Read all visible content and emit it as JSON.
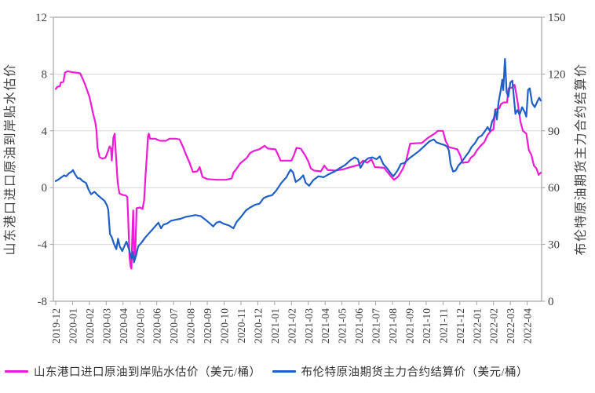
{
  "chart_data": {
    "type": "line",
    "title": "",
    "grid": true,
    "legend_position": "bottom",
    "left_axis": {
      "label": "山东港口进口原油到岸贴水估价",
      "ticks": [
        12,
        8,
        4,
        0,
        -4,
        -8
      ],
      "min": -8,
      "max": 12
    },
    "right_axis": {
      "label": "布伦特原油期货主力合约结算价",
      "ticks": [
        150,
        120,
        90,
        60,
        30,
        0
      ],
      "min": 0,
      "max": 150
    },
    "x_axis": {
      "unit": "month",
      "tick_labels": [
        "2019-12",
        "2020-01",
        "2020-02",
        "2020-03",
        "2020-04",
        "2020-05",
        "2020-06",
        "2020-07",
        "2020-08",
        "2020-09",
        "2020-10",
        "2020-11",
        "2020-12",
        "2021-01",
        "2021-02",
        "2021-03",
        "2021-04",
        "2021-05",
        "2021-06",
        "2021-07",
        "2021-08",
        "2021-09",
        "2021-10",
        "2021-11",
        "2021-12",
        "2022-01",
        "2022-02",
        "2022-03",
        "2022-04"
      ]
    },
    "series": [
      {
        "name": "山东港口进口原油到岸贴水估价（美元/桶）",
        "axis": "left",
        "color": "#ED1BD5",
        "points": [
          [
            0.0,
            6.95
          ],
          [
            0.1,
            7.1
          ],
          [
            0.25,
            7.15
          ],
          [
            0.3,
            7.4
          ],
          [
            0.45,
            7.45
          ],
          [
            0.55,
            8.1
          ],
          [
            0.7,
            8.2
          ],
          [
            0.9,
            8.15
          ],
          [
            1.2,
            8.1
          ],
          [
            1.45,
            8.05
          ],
          [
            1.55,
            7.8
          ],
          [
            1.7,
            7.4
          ],
          [
            1.85,
            6.9
          ],
          [
            2.0,
            6.4
          ],
          [
            2.1,
            5.9
          ],
          [
            2.2,
            5.3
          ],
          [
            2.35,
            4.6
          ],
          [
            2.42,
            4.05
          ],
          [
            2.48,
            2.8
          ],
          [
            2.6,
            2.15
          ],
          [
            2.75,
            2.05
          ],
          [
            2.95,
            2.1
          ],
          [
            3.1,
            2.55
          ],
          [
            3.2,
            2.9
          ],
          [
            3.28,
            2.75
          ],
          [
            3.33,
            1.9
          ],
          [
            3.42,
            3.5
          ],
          [
            3.5,
            3.8
          ],
          [
            3.58,
            2.2
          ],
          [
            3.68,
            0.4
          ],
          [
            3.78,
            -0.4
          ],
          [
            3.95,
            -0.5
          ],
          [
            4.15,
            -0.55
          ],
          [
            4.25,
            -0.65
          ],
          [
            4.3,
            -2.0
          ],
          [
            4.38,
            -4.9
          ],
          [
            4.45,
            -5.6
          ],
          [
            4.5,
            -5.7
          ],
          [
            4.55,
            -3.3
          ],
          [
            4.6,
            -1.6
          ],
          [
            4.66,
            -5.2
          ],
          [
            4.72,
            -4.9
          ],
          [
            4.8,
            -1.45
          ],
          [
            5.0,
            -1.4
          ],
          [
            5.15,
            -1.5
          ],
          [
            5.25,
            -0.9
          ],
          [
            5.32,
            0.6
          ],
          [
            5.4,
            2.0
          ],
          [
            5.48,
            3.6
          ],
          [
            5.53,
            3.8
          ],
          [
            5.6,
            3.45
          ],
          [
            5.9,
            3.45
          ],
          [
            6.2,
            3.3
          ],
          [
            6.55,
            3.3
          ],
          [
            6.75,
            3.45
          ],
          [
            7.1,
            3.45
          ],
          [
            7.35,
            3.4
          ],
          [
            7.55,
            2.9
          ],
          [
            7.75,
            2.3
          ],
          [
            7.95,
            1.75
          ],
          [
            8.15,
            1.1
          ],
          [
            8.4,
            1.15
          ],
          [
            8.55,
            1.45
          ],
          [
            8.72,
            0.75
          ],
          [
            9.0,
            0.6
          ],
          [
            9.6,
            0.55
          ],
          [
            10.1,
            0.55
          ],
          [
            10.45,
            0.65
          ],
          [
            10.55,
            1.05
          ],
          [
            10.75,
            1.35
          ],
          [
            10.95,
            1.7
          ],
          [
            11.15,
            1.9
          ],
          [
            11.35,
            2.1
          ],
          [
            11.55,
            2.45
          ],
          [
            11.8,
            2.6
          ],
          [
            12.1,
            2.7
          ],
          [
            12.4,
            2.95
          ],
          [
            12.6,
            2.75
          ],
          [
            13.05,
            2.7
          ],
          [
            13.25,
            2.2
          ],
          [
            13.35,
            1.9
          ],
          [
            14.0,
            1.9
          ],
          [
            14.15,
            2.3
          ],
          [
            14.3,
            2.8
          ],
          [
            14.55,
            2.75
          ],
          [
            14.8,
            2.3
          ],
          [
            15.0,
            1.85
          ],
          [
            15.15,
            1.35
          ],
          [
            15.35,
            1.2
          ],
          [
            15.75,
            1.15
          ],
          [
            15.95,
            1.55
          ],
          [
            16.15,
            1.25
          ],
          [
            16.6,
            1.2
          ],
          [
            17.1,
            1.3
          ],
          [
            17.5,
            1.45
          ],
          [
            18.0,
            1.6
          ],
          [
            18.25,
            1.9
          ],
          [
            18.5,
            1.75
          ],
          [
            18.75,
            2.0
          ],
          [
            18.95,
            1.45
          ],
          [
            19.5,
            1.4
          ],
          [
            19.9,
            0.8
          ],
          [
            20.1,
            0.55
          ],
          [
            20.35,
            0.8
          ],
          [
            20.6,
            1.3
          ],
          [
            20.8,
            1.85
          ],
          [
            20.95,
            2.6
          ],
          [
            21.05,
            3.1
          ],
          [
            21.75,
            3.15
          ],
          [
            22.1,
            3.5
          ],
          [
            22.5,
            3.8
          ],
          [
            22.7,
            4.0
          ],
          [
            23.0,
            4.0
          ],
          [
            23.15,
            3.3
          ],
          [
            23.35,
            2.85
          ],
          [
            23.85,
            2.7
          ],
          [
            24.05,
            2.2
          ],
          [
            24.15,
            1.75
          ],
          [
            24.5,
            1.8
          ],
          [
            24.65,
            2.1
          ],
          [
            24.85,
            2.3
          ],
          [
            25.0,
            2.6
          ],
          [
            25.2,
            2.9
          ],
          [
            25.45,
            3.2
          ],
          [
            25.65,
            3.7
          ],
          [
            25.85,
            4.0
          ],
          [
            26.0,
            4.1
          ],
          [
            26.1,
            5.5
          ],
          [
            26.35,
            5.6
          ],
          [
            26.45,
            5.9
          ],
          [
            26.6,
            6.0
          ],
          [
            26.8,
            6.0
          ],
          [
            26.9,
            7.0
          ],
          [
            27.1,
            7.05
          ],
          [
            27.25,
            7.25
          ],
          [
            27.35,
            6.6
          ],
          [
            27.45,
            5.9
          ],
          [
            27.6,
            4.65
          ],
          [
            27.75,
            4.0
          ],
          [
            27.95,
            3.8
          ],
          [
            28.1,
            2.65
          ],
          [
            28.25,
            2.3
          ],
          [
            28.4,
            1.55
          ],
          [
            28.55,
            1.35
          ],
          [
            28.68,
            0.9
          ],
          [
            28.8,
            1.05
          ]
        ]
      },
      {
        "name": "布伦特原油期货主力合约结算价（美元/桶）",
        "axis": "right",
        "color": "#1F5FC6",
        "points": [
          [
            0.0,
            63.5
          ],
          [
            0.2,
            64.5
          ],
          [
            0.35,
            65.5
          ],
          [
            0.5,
            66.5
          ],
          [
            0.62,
            66.0
          ],
          [
            0.78,
            67.5
          ],
          [
            0.95,
            68.5
          ],
          [
            1.02,
            69.3
          ],
          [
            1.15,
            67.0
          ],
          [
            1.3,
            65.0
          ],
          [
            1.45,
            64.8
          ],
          [
            1.6,
            63.5
          ],
          [
            1.8,
            62.5
          ],
          [
            1.95,
            59.0
          ],
          [
            2.1,
            56.5
          ],
          [
            2.3,
            57.8
          ],
          [
            2.5,
            56.0
          ],
          [
            2.7,
            54.5
          ],
          [
            2.9,
            53.0
          ],
          [
            3.05,
            50.5
          ],
          [
            3.12,
            48.3
          ],
          [
            3.22,
            35.5
          ],
          [
            3.32,
            34.0
          ],
          [
            3.45,
            30.5
          ],
          [
            3.6,
            27.5
          ],
          [
            3.7,
            33.0
          ],
          [
            3.8,
            29.0
          ],
          [
            3.95,
            26.5
          ],
          [
            4.1,
            29.5
          ],
          [
            4.2,
            31.5
          ],
          [
            4.35,
            27.5
          ],
          [
            4.5,
            22.5
          ],
          [
            4.58,
            26.0
          ],
          [
            4.65,
            20.5
          ],
          [
            4.78,
            24.5
          ],
          [
            4.9,
            29.0
          ],
          [
            5.1,
            31.0
          ],
          [
            5.3,
            33.5
          ],
          [
            5.5,
            35.5
          ],
          [
            5.7,
            37.5
          ],
          [
            5.9,
            39.5
          ],
          [
            6.1,
            41.5
          ],
          [
            6.25,
            38.5
          ],
          [
            6.4,
            40.5
          ],
          [
            6.6,
            41.0
          ],
          [
            6.85,
            42.5
          ],
          [
            7.1,
            43.0
          ],
          [
            7.4,
            43.5
          ],
          [
            7.7,
            44.5
          ],
          [
            8.0,
            45.0
          ],
          [
            8.3,
            45.5
          ],
          [
            8.6,
            45.0
          ],
          [
            8.9,
            43.0
          ],
          [
            9.1,
            41.5
          ],
          [
            9.35,
            39.5
          ],
          [
            9.55,
            41.5
          ],
          [
            9.75,
            42.0
          ],
          [
            9.95,
            41.0
          ],
          [
            10.3,
            40.0
          ],
          [
            10.55,
            38.5
          ],
          [
            10.75,
            42.0
          ],
          [
            11.0,
            44.5
          ],
          [
            11.3,
            48.0
          ],
          [
            11.55,
            49.5
          ],
          [
            11.85,
            51.0
          ],
          [
            12.1,
            51.5
          ],
          [
            12.35,
            54.5
          ],
          [
            12.6,
            55.5
          ],
          [
            12.85,
            56.0
          ],
          [
            13.1,
            58.5
          ],
          [
            13.4,
            62.5
          ],
          [
            13.7,
            65.5
          ],
          [
            13.85,
            68.0
          ],
          [
            13.95,
            69.5
          ],
          [
            14.1,
            68.0
          ],
          [
            14.25,
            63.0
          ],
          [
            14.5,
            64.5
          ],
          [
            14.7,
            66.5
          ],
          [
            14.85,
            62.5
          ],
          [
            15.05,
            61.0
          ],
          [
            15.3,
            64.0
          ],
          [
            15.6,
            66.0
          ],
          [
            15.9,
            65.5
          ],
          [
            16.2,
            67.0
          ],
          [
            16.55,
            68.5
          ],
          [
            16.9,
            70.5
          ],
          [
            17.2,
            72.0
          ],
          [
            17.5,
            74.5
          ],
          [
            17.75,
            76.0
          ],
          [
            17.95,
            75.0
          ],
          [
            18.1,
            70.5
          ],
          [
            18.3,
            73.5
          ],
          [
            18.55,
            75.5
          ],
          [
            18.8,
            76.0
          ],
          [
            19.05,
            75.0
          ],
          [
            19.25,
            76.5
          ],
          [
            19.45,
            72.5
          ],
          [
            19.7,
            70.0
          ],
          [
            19.9,
            67.5
          ],
          [
            20.05,
            66.0
          ],
          [
            20.3,
            69.0
          ],
          [
            20.5,
            72.5
          ],
          [
            20.7,
            73.0
          ],
          [
            21.0,
            75.5
          ],
          [
            21.3,
            77.5
          ],
          [
            21.6,
            79.5
          ],
          [
            21.9,
            82.0
          ],
          [
            22.2,
            84.5
          ],
          [
            22.45,
            85.5
          ],
          [
            22.6,
            84.0
          ],
          [
            22.9,
            83.0
          ],
          [
            23.1,
            82.5
          ],
          [
            23.25,
            81.5
          ],
          [
            23.35,
            79.5
          ],
          [
            23.45,
            72.5
          ],
          [
            23.6,
            68.5
          ],
          [
            23.75,
            69.0
          ],
          [
            23.9,
            71.5
          ],
          [
            24.1,
            73.5
          ],
          [
            24.3,
            76.0
          ],
          [
            24.55,
            79.0
          ],
          [
            24.7,
            81.5
          ],
          [
            24.9,
            83.5
          ],
          [
            25.1,
            86.5
          ],
          [
            25.3,
            87.5
          ],
          [
            25.5,
            90.0
          ],
          [
            25.65,
            92.0
          ],
          [
            25.78,
            90.0
          ],
          [
            25.92,
            95.0
          ],
          [
            26.02,
            96.5
          ],
          [
            26.12,
            101.0
          ],
          [
            26.2,
            96.0
          ],
          [
            26.3,
            105.0
          ],
          [
            26.42,
            111.0
          ],
          [
            26.52,
            117.0
          ],
          [
            26.58,
            111.5
          ],
          [
            26.68,
            128.0
          ],
          [
            26.78,
            110.5
          ],
          [
            26.88,
            108.0
          ],
          [
            27.0,
            115.5
          ],
          [
            27.12,
            116.5
          ],
          [
            27.3,
            99.0
          ],
          [
            27.42,
            101.0
          ],
          [
            27.55,
            98.5
          ],
          [
            27.7,
            102.5
          ],
          [
            27.85,
            100.0
          ],
          [
            27.95,
            97.5
          ],
          [
            28.05,
            111.5
          ],
          [
            28.15,
            112.5
          ],
          [
            28.3,
            104.5
          ],
          [
            28.45,
            102.5
          ],
          [
            28.6,
            105.5
          ],
          [
            28.72,
            107.5
          ],
          [
            28.8,
            106.0
          ]
        ]
      }
    ]
  },
  "legend": {
    "items": [
      {
        "label": "山东港口进口原油到岸贴水估价（美元/桶）",
        "color": "#ED1BD5"
      },
      {
        "label": "布伦特原油期货主力合约结算价（美元/桶）",
        "color": "#1F5FC6"
      }
    ]
  },
  "colors": {
    "grid": "#D6D6D6",
    "axis_border": "#A3A3A3",
    "tick_text": "#404040",
    "axis_title_text": "#404040"
  }
}
